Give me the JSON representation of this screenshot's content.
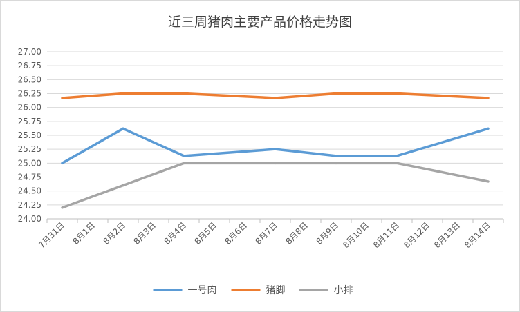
{
  "chart_data": {
    "type": "line",
    "title": "近三周猪肉主要产品价格走势图",
    "categories": [
      "7月31日",
      "8月1日",
      "8月2日",
      "8月3日",
      "8月4日",
      "8月5日",
      "8月6日",
      "8月7日",
      "8月8日",
      "8月9日",
      "8月10日",
      "8月11日",
      "8月12日",
      "8月13日",
      "8月14日"
    ],
    "series": [
      {
        "name": "一号肉",
        "color": "#5b9bd5",
        "values": [
          25.0,
          null,
          25.62,
          null,
          25.13,
          null,
          null,
          25.25,
          null,
          25.13,
          null,
          25.13,
          null,
          null,
          25.62
        ]
      },
      {
        "name": "猪脚",
        "color": "#ed7d31",
        "values": [
          26.17,
          null,
          26.25,
          null,
          26.25,
          null,
          null,
          26.17,
          null,
          26.25,
          null,
          26.25,
          null,
          null,
          26.17
        ]
      },
      {
        "name": "小排",
        "color": "#a5a5a5",
        "values": [
          24.2,
          null,
          24.6,
          null,
          25.0,
          null,
          null,
          25.0,
          null,
          25.0,
          null,
          25.0,
          null,
          null,
          24.67
        ]
      }
    ],
    "ylim": [
      24,
      27
    ],
    "yticks": [
      {
        "value": 24,
        "label": "24.00"
      },
      {
        "value": 24.25,
        "label": "24.25"
      },
      {
        "value": 24.5,
        "label": "24.50"
      },
      {
        "value": 24.75,
        "label": "24.75"
      },
      {
        "value": 25,
        "label": "25.00"
      },
      {
        "value": 25.25,
        "label": "25.25"
      },
      {
        "value": 25.5,
        "label": "25.50"
      },
      {
        "value": 25.75,
        "label": "25.75"
      },
      {
        "value": 26,
        "label": "26.00"
      },
      {
        "value": 26.25,
        "label": "26.25"
      },
      {
        "value": 26.5,
        "label": "26.50"
      },
      {
        "value": 26.75,
        "label": "26.75"
      },
      {
        "value": 27,
        "label": "27.00"
      }
    ],
    "grid": true,
    "legend": "bottom",
    "connect_gaps": true
  }
}
